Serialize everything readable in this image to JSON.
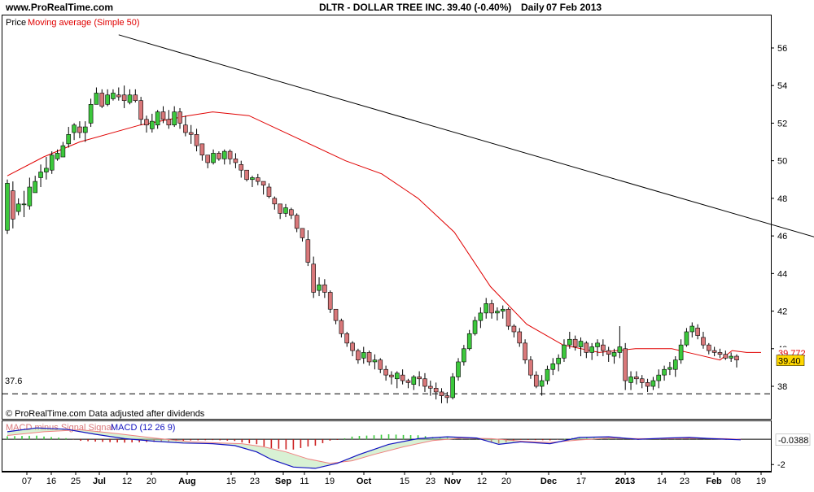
{
  "header": {
    "site": "www.ProRealTime.com",
    "ticker": "DLTR - DOLLAR TREE INC.",
    "quote": "39.40 (-0.40%)",
    "period": "Daily",
    "date": "07 Feb 2013"
  },
  "price_panel": {
    "label_price": "Price",
    "label_ma": "Moving average (Simple 50)",
    "footer_note": "© ProRealTime.com  Data adjusted after dividends",
    "support_label": "37.6"
  },
  "macd_panel": {
    "label_hist": "MACD minus Signal Signal",
    "label_macd": "MACD (12 26 9)"
  },
  "colors": {
    "up": "#3cc83c",
    "down": "#d9787a",
    "ma": "#e00000",
    "macd_line": "#1010c0",
    "signal_line": "#f08080",
    "macd_hist": "#cc2020",
    "badge_price": "#ffd700",
    "badge_ma_text": "#e00000"
  },
  "chart_data": [
    {
      "type": "candlestick",
      "name": "price",
      "y_axis_ticks": [
        38,
        40,
        42,
        44,
        46,
        48,
        50,
        52,
        54,
        56
      ],
      "ylim": [
        36.4,
        57.6
      ],
      "x_tick_labels": [
        "07",
        "16",
        "25",
        "Jul",
        "12",
        "20",
        "Aug",
        "15",
        "23",
        "Sep",
        "11",
        "19",
        "Oct",
        "15",
        "23",
        "Nov",
        "12",
        "20",
        "Dec",
        "17",
        "2013",
        "14",
        "23",
        "Feb",
        "08",
        "19"
      ],
      "last_price": "39.40",
      "last_ma": "39.772",
      "trendline": {
        "from": [
          20,
          56.7
        ],
        "to": [
          214,
          40.0
        ]
      },
      "support_level": 37.6,
      "ma50_points": [
        [
          0,
          49.2
        ],
        [
          15,
          50.2
        ],
        [
          30,
          51.0
        ],
        [
          55,
          51.9
        ],
        [
          75,
          52.4
        ],
        [
          85,
          52.6
        ],
        [
          100,
          52.4
        ],
        [
          120,
          51.2
        ],
        [
          140,
          50.0
        ],
        [
          155,
          49.3
        ],
        [
          170,
          48.0
        ],
        [
          185,
          46.2
        ],
        [
          200,
          43.3
        ],
        [
          215,
          41.3
        ],
        [
          230,
          40.2
        ],
        [
          245,
          39.8
        ],
        [
          260,
          40.0
        ],
        [
          275,
          40.0
        ],
        [
          285,
          39.7
        ],
        [
          295,
          39.4
        ],
        [
          300,
          39.9
        ],
        [
          306,
          39.8
        ],
        [
          312,
          39.8
        ]
      ],
      "candles": [
        [
          49.0,
          46.1,
          46.3,
          48.8
        ],
        [
          48.9,
          46.4,
          48.4,
          46.9
        ],
        [
          48.0,
          47.1,
          47.3,
          47.7
        ],
        [
          48.4,
          47.0,
          47.7,
          47.7
        ],
        [
          49.1,
          47.4,
          47.6,
          48.6
        ],
        [
          49.2,
          48.3,
          48.3,
          48.9
        ],
        [
          49.8,
          48.6,
          49.1,
          49.4
        ],
        [
          50.2,
          49.0,
          49.4,
          49.6
        ],
        [
          50.5,
          49.3,
          49.5,
          50.3
        ],
        [
          50.6,
          50.0,
          50.1,
          50.4
        ],
        [
          51.0,
          50.2,
          50.2,
          50.8
        ],
        [
          51.8,
          50.7,
          50.9,
          51.4
        ],
        [
          52.0,
          51.1,
          51.5,
          51.9
        ],
        [
          52.1,
          51.2,
          51.8,
          51.5
        ],
        [
          52.1,
          51.0,
          51.5,
          51.8
        ],
        [
          53.3,
          51.8,
          52.0,
          53.0
        ],
        [
          53.9,
          53.0,
          53.0,
          53.6
        ],
        [
          53.8,
          52.8,
          53.6,
          52.9
        ],
        [
          53.8,
          52.9,
          53.0,
          53.5
        ],
        [
          53.8,
          53.2,
          53.3,
          53.6
        ],
        [
          53.9,
          53.2,
          53.5,
          53.4
        ],
        [
          54.0,
          52.8,
          53.5,
          53.2
        ],
        [
          53.8,
          53.0,
          53.1,
          53.5
        ],
        [
          53.8,
          53.1,
          53.5,
          53.2
        ],
        [
          53.4,
          51.9,
          53.2,
          52.2
        ],
        [
          52.4,
          51.5,
          52.2,
          51.9
        ],
        [
          52.5,
          51.5,
          51.7,
          52.1
        ],
        [
          52.7,
          51.7,
          51.9,
          52.6
        ],
        [
          52.9,
          52.0,
          52.6,
          52.2
        ],
        [
          52.7,
          51.7,
          52.2,
          51.9
        ],
        [
          52.9,
          51.8,
          51.9,
          52.6
        ],
        [
          52.8,
          51.7,
          52.6,
          52.0
        ],
        [
          52.4,
          51.3,
          51.9,
          51.5
        ],
        [
          51.9,
          50.9,
          51.5,
          51.4
        ],
        [
          51.7,
          50.5,
          51.4,
          50.8
        ],
        [
          50.9,
          50.0,
          50.9,
          50.3
        ],
        [
          50.3,
          49.6,
          50.3,
          49.9
        ],
        [
          50.6,
          49.8,
          49.9,
          50.4
        ],
        [
          50.5,
          50.0,
          50.4,
          50.1
        ],
        [
          50.6,
          49.8,
          50.1,
          50.5
        ],
        [
          50.6,
          49.8,
          50.5,
          50.1
        ],
        [
          50.4,
          49.6,
          50.1,
          49.9
        ],
        [
          50.0,
          49.1,
          49.8,
          49.5
        ],
        [
          49.5,
          48.9,
          49.5,
          49.0
        ],
        [
          49.2,
          48.6,
          49.0,
          49.1
        ],
        [
          49.3,
          48.7,
          49.1,
          48.9
        ],
        [
          48.9,
          48.2,
          48.9,
          48.7
        ],
        [
          48.8,
          48.0,
          48.6,
          48.1
        ],
        [
          48.1,
          47.4,
          48.0,
          47.7
        ],
        [
          47.7,
          46.9,
          47.7,
          47.2
        ],
        [
          47.7,
          47.0,
          47.2,
          47.5
        ],
        [
          47.5,
          46.9,
          47.4,
          47.1
        ],
        [
          47.2,
          46.2,
          47.1,
          46.4
        ],
        [
          46.4,
          45.7,
          46.4,
          45.9
        ],
        [
          46.3,
          44.4,
          45.8,
          44.6
        ],
        [
          44.9,
          42.7,
          44.5,
          43.0
        ],
        [
          43.8,
          42.8,
          43.1,
          43.4
        ],
        [
          43.7,
          42.7,
          43.4,
          43.0
        ],
        [
          43.1,
          41.9,
          43.0,
          42.1
        ],
        [
          42.1,
          41.3,
          42.1,
          41.5
        ],
        [
          41.6,
          40.6,
          41.5,
          40.8
        ],
        [
          40.9,
          40.1,
          40.8,
          40.3
        ],
        [
          40.4,
          39.6,
          40.3,
          39.9
        ],
        [
          40.0,
          39.2,
          39.9,
          39.4
        ],
        [
          40.1,
          39.2,
          39.5,
          39.8
        ],
        [
          39.9,
          39.1,
          39.8,
          39.3
        ],
        [
          39.7,
          38.9,
          39.3,
          39.4
        ],
        [
          39.5,
          38.7,
          39.4,
          38.9
        ],
        [
          39.1,
          38.3,
          38.9,
          38.6
        ],
        [
          38.8,
          38.1,
          38.6,
          38.5
        ],
        [
          38.8,
          37.9,
          38.4,
          38.7
        ],
        [
          38.9,
          38.1,
          38.6,
          38.3
        ],
        [
          38.4,
          37.9,
          38.3,
          38.2
        ],
        [
          38.6,
          37.8,
          38.1,
          38.5
        ],
        [
          38.8,
          38.0,
          38.5,
          38.4
        ],
        [
          38.7,
          37.7,
          38.4,
          38.0
        ],
        [
          38.3,
          37.5,
          38.0,
          37.9
        ],
        [
          38.2,
          37.3,
          37.9,
          37.7
        ],
        [
          37.9,
          37.1,
          37.7,
          37.5
        ],
        [
          37.7,
          37.1,
          37.5,
          37.4
        ],
        [
          38.7,
          37.3,
          37.4,
          38.5
        ],
        [
          39.5,
          38.3,
          38.5,
          39.3
        ],
        [
          40.2,
          39.1,
          39.3,
          40.0
        ],
        [
          41.0,
          39.9,
          40.0,
          40.8
        ],
        [
          41.7,
          40.7,
          40.8,
          41.5
        ],
        [
          42.2,
          41.1,
          41.5,
          41.9
        ],
        [
          42.7,
          41.6,
          41.9,
          42.4
        ],
        [
          42.6,
          41.6,
          42.4,
          41.9
        ],
        [
          42.2,
          41.5,
          41.9,
          42.0
        ],
        [
          42.3,
          41.6,
          42.0,
          42.1
        ],
        [
          42.2,
          41.0,
          42.1,
          41.2
        ],
        [
          41.3,
          40.6,
          41.2,
          40.9
        ],
        [
          41.1,
          40.1,
          40.9,
          40.3
        ],
        [
          40.5,
          39.2,
          40.3,
          39.4
        ],
        [
          39.6,
          38.4,
          39.4,
          38.6
        ],
        [
          38.8,
          37.9,
          38.6,
          38.0
        ],
        [
          38.6,
          37.5,
          38.0,
          38.3
        ],
        [
          39.1,
          38.1,
          38.3,
          38.9
        ],
        [
          39.5,
          38.6,
          38.9,
          39.2
        ],
        [
          39.7,
          38.8,
          39.2,
          39.5
        ],
        [
          40.5,
          39.3,
          39.5,
          40.2
        ],
        [
          40.9,
          40.0,
          40.2,
          40.5
        ],
        [
          40.7,
          39.9,
          40.5,
          40.1
        ],
        [
          40.6,
          39.6,
          40.1,
          40.4
        ],
        [
          40.4,
          39.5,
          40.3,
          39.8
        ],
        [
          40.3,
          39.4,
          39.8,
          40.1
        ],
        [
          40.5,
          39.6,
          40.1,
          40.3
        ],
        [
          40.5,
          39.6,
          40.2,
          39.9
        ],
        [
          40.1,
          39.3,
          39.9,
          39.7
        ],
        [
          40.0,
          39.2,
          39.6,
          39.8
        ],
        [
          41.2,
          39.5,
          39.8,
          40.1
        ],
        [
          40.3,
          37.8,
          40.0,
          38.3
        ],
        [
          38.8,
          37.8,
          38.2,
          38.5
        ],
        [
          38.8,
          38.1,
          38.5,
          38.4
        ],
        [
          38.6,
          37.9,
          38.4,
          38.2
        ],
        [
          38.4,
          37.7,
          38.2,
          38.0
        ],
        [
          38.5,
          37.8,
          38.0,
          38.3
        ],
        [
          38.9,
          37.9,
          38.3,
          38.6
        ],
        [
          39.1,
          38.3,
          38.6,
          38.9
        ],
        [
          39.3,
          38.6,
          38.9,
          39.0
        ],
        [
          39.6,
          38.5,
          38.9,
          39.4
        ],
        [
          40.5,
          39.2,
          39.4,
          40.2
        ],
        [
          41.1,
          40.1,
          40.2,
          40.9
        ],
        [
          41.4,
          40.6,
          40.9,
          41.2
        ],
        [
          41.3,
          40.5,
          41.1,
          40.7
        ],
        [
          40.9,
          40.0,
          40.6,
          40.2
        ],
        [
          40.3,
          39.7,
          40.2,
          39.9
        ],
        [
          40.1,
          39.6,
          39.9,
          39.8
        ],
        [
          40.0,
          39.5,
          39.8,
          39.7
        ],
        [
          39.9,
          39.4,
          39.7,
          39.5
        ],
        [
          39.8,
          39.3,
          39.5,
          39.6
        ],
        [
          39.7,
          39.0,
          39.6,
          39.4
        ]
      ]
    },
    {
      "type": "macd",
      "name": "MACD (12 26 9)",
      "params": [
        12,
        26,
        9
      ],
      "y_axis_ticks": [
        -2,
        "-0.0388"
      ],
      "ylim": [
        -2.5,
        1.3
      ],
      "last_value": -0.0388,
      "macd_points": [
        [
          0,
          0.6
        ],
        [
          8,
          0.9
        ],
        [
          16,
          0.8
        ],
        [
          24,
          0.4
        ],
        [
          32,
          0.05
        ],
        [
          40,
          -0.15
        ],
        [
          48,
          -0.3
        ],
        [
          56,
          -0.35
        ],
        [
          62,
          -0.5
        ],
        [
          68,
          -1.0
        ],
        [
          72,
          -1.6
        ],
        [
          78,
          -2.2
        ],
        [
          84,
          -2.3
        ],
        [
          90,
          -1.9
        ],
        [
          96,
          -1.2
        ],
        [
          104,
          -0.4
        ],
        [
          112,
          0.05
        ],
        [
          120,
          0.2
        ],
        [
          128,
          0.1
        ],
        [
          134,
          -0.4
        ],
        [
          140,
          -0.2
        ],
        [
          148,
          -0.35
        ],
        [
          156,
          0.15
        ],
        [
          164,
          0.2
        ],
        [
          172,
          0.0
        ],
        [
          180,
          0.1
        ],
        [
          186,
          0.15
        ],
        [
          192,
          0.05
        ],
        [
          200,
          -0.04
        ]
      ],
      "signal_points": [
        [
          0,
          0.3
        ],
        [
          10,
          0.6
        ],
        [
          20,
          0.75
        ],
        [
          30,
          0.45
        ],
        [
          40,
          0.1
        ],
        [
          50,
          -0.2
        ],
        [
          58,
          -0.3
        ],
        [
          64,
          -0.35
        ],
        [
          70,
          -0.6
        ],
        [
          76,
          -1.0
        ],
        [
          82,
          -1.55
        ],
        [
          88,
          -1.9
        ],
        [
          94,
          -1.7
        ],
        [
          100,
          -1.2
        ],
        [
          108,
          -0.6
        ],
        [
          116,
          -0.1
        ],
        [
          124,
          0.1
        ],
        [
          132,
          0.05
        ],
        [
          140,
          -0.15
        ],
        [
          148,
          -0.25
        ],
        [
          156,
          -0.05
        ],
        [
          164,
          0.1
        ],
        [
          172,
          0.05
        ],
        [
          180,
          0.05
        ],
        [
          188,
          0.08
        ],
        [
          196,
          0.05
        ],
        [
          200,
          0.0
        ]
      ]
    }
  ]
}
